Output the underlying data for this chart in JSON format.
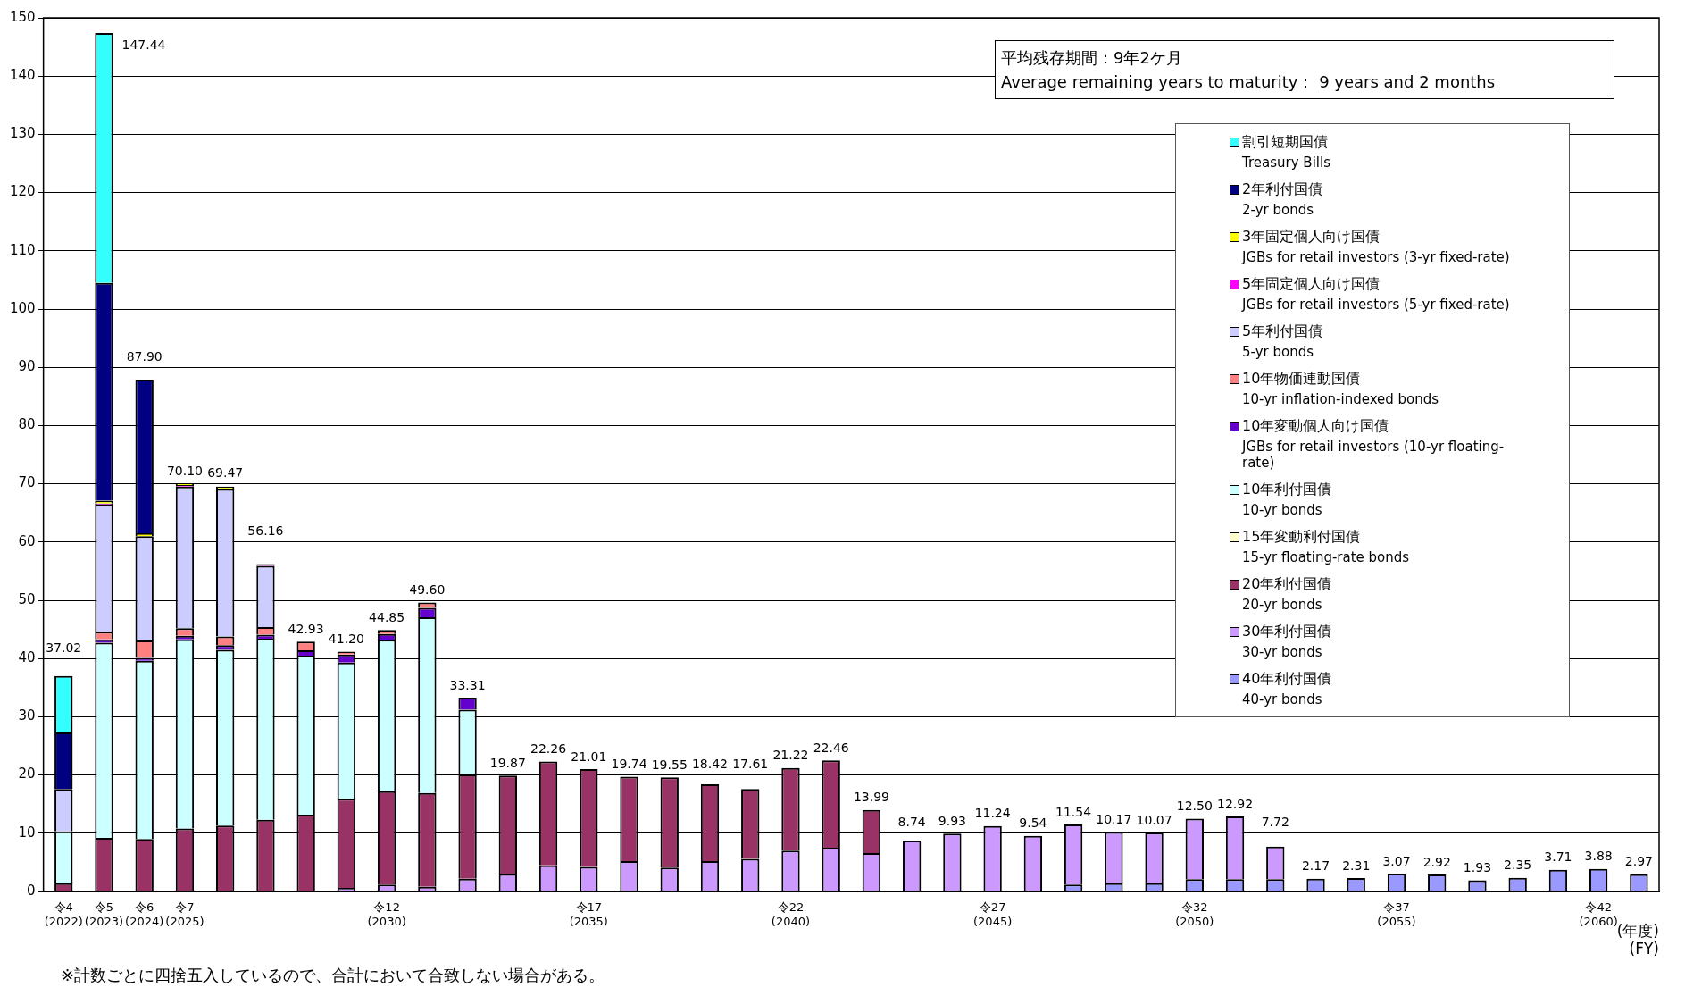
{
  "chart_data": {
    "type": "bar",
    "stacked": true,
    "categories": [
      "令4\n(2022)",
      "令5\n(2023)",
      "令6\n(2024)",
      "令7\n(2025)",
      null,
      null,
      null,
      null,
      "令12\n(2030)",
      null,
      null,
      null,
      null,
      "令17\n(2035)",
      null,
      null,
      null,
      null,
      "令22\n(2040)",
      null,
      null,
      null,
      null,
      "令27\n(2045)",
      null,
      null,
      null,
      null,
      "令32\n(2050)",
      null,
      null,
      null,
      null,
      "令37\n(2055)",
      null,
      null,
      null,
      null,
      "令42\n(2060)",
      null
    ],
    "xlabel": "(年度)\n(FY)",
    "ylim": [
      0,
      150
    ],
    "yticks": [
      0,
      10,
      20,
      30,
      40,
      50,
      60,
      70,
      80,
      90,
      100,
      110,
      120,
      130,
      140,
      150
    ],
    "grid": "y",
    "legend": "top right",
    "annotations": [
      "平均残存期間：9年2ケ月",
      "Average remaining years to maturity： 9 years and 2 months",
      "※計数ごとに四捨五入しているので、合計において合致しない場合がある。"
    ],
    "totals": [
      "37.02",
      "147.44",
      "87.90",
      "70.10",
      "69.47",
      "56.16",
      "42.93",
      "41.20",
      "44.85",
      "49.60",
      "33.31",
      "19.87",
      "22.26",
      "21.01",
      "19.74",
      "19.55",
      "18.42",
      "17.61",
      "21.22",
      "22.46",
      "13.99",
      "8.74",
      "9.93",
      "11.24",
      "9.54",
      "11.54",
      "10.17",
      "10.07",
      "12.50",
      "12.92",
      "7.72",
      "2.17",
      "2.31",
      "3.07",
      "2.92",
      "1.93",
      "2.35",
      "3.71",
      "3.88",
      "2.97"
    ],
    "series": [
      {
        "name": "40年利付国債\n40-yr bonds",
        "color": "#9999ff",
        "values": [
          null,
          null,
          null,
          null,
          null,
          null,
          null,
          null,
          null,
          null,
          null,
          null,
          null,
          null,
          null,
          null,
          null,
          null,
          null,
          null,
          null,
          null,
          null,
          null,
          null,
          1.2,
          1.4,
          1.4,
          2.1,
          2.1,
          2.1,
          2.17,
          2.31,
          3.07,
          2.92,
          1.93,
          2.35,
          3.71,
          3.88,
          2.97
        ]
      },
      {
        "name": "30年利付国債\n30-yr bonds",
        "color": "#cc99ff",
        "values": [
          null,
          null,
          null,
          null,
          null,
          null,
          null,
          0.6,
          1.2,
          0.8,
          2.2,
          3.0,
          4.5,
          4.2,
          5.2,
          4.1,
          5.2,
          5.6,
          7.0,
          7.5,
          6.6,
          8.74,
          9.93,
          11.24,
          9.54,
          10.3,
          8.8,
          8.7,
          10.4,
          10.8,
          5.6,
          null,
          null,
          null,
          null,
          null,
          null,
          null,
          null,
          null
        ]
      },
      {
        "name": "20年利付国債\n20-yr bonds",
        "color": "#993366",
        "values": [
          1.4,
          9.2,
          9.0,
          10.8,
          11.3,
          12.3,
          13.2,
          15.3,
          16.0,
          16.1,
          17.9,
          16.9,
          17.8,
          16.8,
          14.5,
          15.5,
          13.2,
          12.0,
          14.2,
          15.0,
          7.4,
          null,
          null,
          null,
          null,
          null,
          null,
          null,
          null,
          null,
          null,
          null,
          null,
          null,
          null,
          null,
          null,
          null,
          null,
          null
        ]
      },
      {
        "name": "15年変動利付国債\n15-yr floating-rate bonds",
        "color": "#ffffcc",
        "values": [
          null,
          null,
          null,
          null,
          null,
          null,
          null,
          null,
          null,
          null,
          null,
          null,
          null,
          null,
          null,
          null,
          null,
          null,
          null,
          null,
          null,
          null,
          null,
          null,
          null,
          null,
          null,
          null,
          null,
          null,
          null,
          null,
          null,
          null,
          null,
          null,
          null,
          null,
          null,
          null
        ]
      },
      {
        "name": "10年利付国債\n10-yr bonds",
        "color": "#ccffff",
        "values": [
          8.9,
          33.5,
          30.6,
          32.5,
          30.2,
          31.1,
          27.3,
          23.4,
          26.0,
          30.2,
          11.1,
          null,
          null,
          null,
          null,
          null,
          null,
          null,
          null,
          null,
          null,
          null,
          null,
          null,
          null,
          null,
          null,
          null,
          null,
          null,
          null,
          null,
          null,
          null,
          null,
          null,
          null,
          null,
          null,
          null
        ]
      },
      {
        "name": "10年変動個人向け国債\nJGBs for retail investors (10-yr floating-rate)",
        "color": "#6600cc",
        "values": [
          null,
          0.6,
          0.5,
          0.6,
          0.8,
          0.7,
          0.9,
          1.4,
          1.0,
          1.6,
          2.1,
          null,
          null,
          null,
          null,
          null,
          null,
          null,
          null,
          null,
          null,
          null,
          null,
          null,
          null,
          null,
          null,
          null,
          null,
          null,
          null,
          null,
          null,
          null,
          null,
          null,
          null,
          null,
          null,
          null
        ]
      },
      {
        "name": "10年物価連動国債\n10-yr inflation-indexed bonds",
        "color": "#ff8080",
        "values": [
          null,
          1.3,
          3.0,
          1.3,
          1.5,
          1.3,
          1.5,
          0.5,
          0.7,
          0.9,
          null,
          null,
          null,
          null,
          null,
          null,
          null,
          null,
          null,
          null,
          null,
          null,
          null,
          null,
          null,
          null,
          null,
          null,
          null,
          null,
          null,
          null,
          null,
          null,
          null,
          null,
          null,
          null,
          null,
          null
        ]
      },
      {
        "name": "5年利付国債\n5-yr bonds",
        "color": "#ccccff",
        "values": [
          7.3,
          21.8,
          17.9,
          24.3,
          25.3,
          10.5,
          null,
          null,
          null,
          null,
          null,
          null,
          null,
          null,
          null,
          null,
          null,
          null,
          null,
          null,
          null,
          null,
          null,
          null,
          null,
          null,
          null,
          null,
          null,
          null,
          null,
          null,
          null,
          null,
          null,
          null,
          null,
          null,
          null,
          null
        ]
      },
      {
        "name": "5年固定個人向け国債\nJGBs for retail investors (5-yr fixed-rate)",
        "color": "#ff00ff",
        "values": [
          null,
          0.2,
          null,
          0.3,
          null,
          0.3,
          null,
          null,
          null,
          null,
          null,
          null,
          null,
          null,
          null,
          null,
          null,
          null,
          null,
          null,
          null,
          null,
          null,
          null,
          null,
          null,
          null,
          null,
          null,
          null,
          null,
          null,
          null,
          null,
          null,
          null,
          null,
          null,
          null,
          null
        ]
      },
      {
        "name": "3年固定個人向け国債\nJGBs for retail investors (3-yr fixed-rate)",
        "color": "#ffff00",
        "values": [
          null,
          0.5,
          0.5,
          0.3,
          0.4,
          null,
          null,
          null,
          null,
          null,
          null,
          null,
          null,
          null,
          null,
          null,
          null,
          null,
          null,
          null,
          null,
          null,
          null,
          null,
          null,
          null,
          null,
          null,
          null,
          null,
          null,
          null,
          null,
          null,
          null,
          null,
          null,
          null,
          null,
          null
        ]
      },
      {
        "name": "2年利付国債\n2-yr bonds",
        "color": "#000080",
        "values": [
          9.7,
          37.4,
          26.4,
          null,
          null,
          null,
          null,
          null,
          null,
          null,
          null,
          null,
          null,
          null,
          null,
          null,
          null,
          null,
          null,
          null,
          null,
          null,
          null,
          null,
          null,
          null,
          null,
          null,
          null,
          null,
          null,
          null,
          null,
          null,
          null,
          null,
          null,
          null,
          null,
          null
        ]
      },
      {
        "name": "割引短期国債\nTreasury Bills",
        "color": "#33ffff",
        "values": [
          9.7,
          42.9,
          null,
          null,
          null,
          null,
          null,
          null,
          null,
          null,
          null,
          null,
          null,
          null,
          null,
          null,
          null,
          null,
          null,
          null,
          null,
          null,
          null,
          null,
          null,
          null,
          null,
          null,
          null,
          null,
          null,
          null,
          null,
          null,
          null,
          null,
          null,
          null,
          null,
          null
        ]
      }
    ]
  }
}
